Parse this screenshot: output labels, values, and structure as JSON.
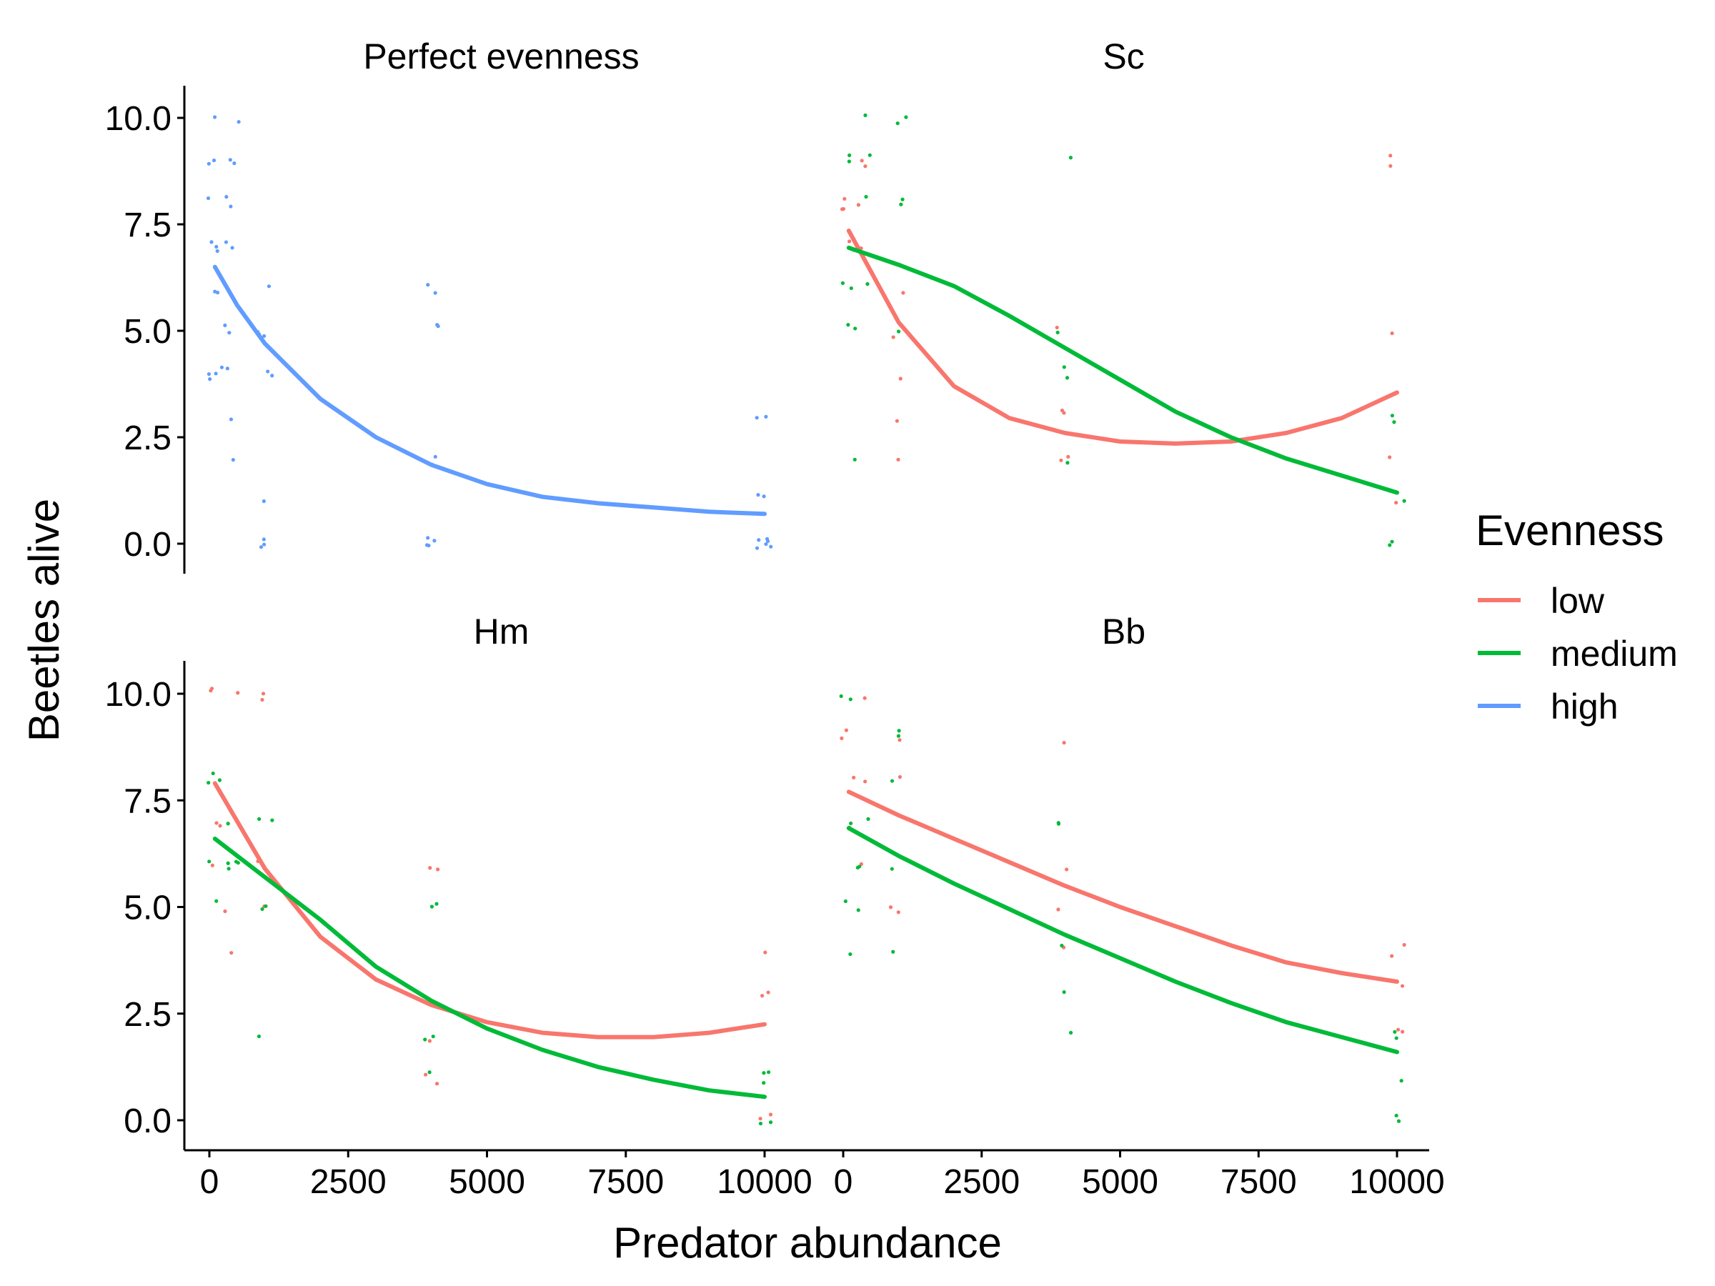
{
  "chart_data": {
    "type": "line+scatter (faceted)",
    "xlabel": "Predator abundance",
    "ylabel": "Beetles alive",
    "xlim": [
      0,
      10000
    ],
    "ylim": [
      0,
      10
    ],
    "x_ticks": [
      0,
      2500,
      5000,
      7500,
      10000
    ],
    "x_tick_labels": [
      "0",
      "2500",
      "5000",
      "7500",
      "10000"
    ],
    "y_ticks": [
      0,
      2.5,
      5,
      7.5,
      10
    ],
    "y_tick_labels": [
      "0.0",
      "2.5",
      "5.0",
      "7.5",
      "10.0"
    ],
    "grid": false,
    "legend": {
      "title": "Evenness",
      "position": "right",
      "entries": [
        {
          "name": "low",
          "color": "#F8766D"
        },
        {
          "name": "medium",
          "color": "#00BA38"
        },
        {
          "name": "high",
          "color": "#619CFF"
        }
      ]
    },
    "panels": [
      {
        "title": "Perfect evenness",
        "series": [
          {
            "name": "high",
            "color": "#619CFF",
            "fit": {
              "x": [
                100,
                500,
                1000,
                2000,
                3000,
                4000,
                5000,
                6000,
                7000,
                8000,
                9000,
                10000
              ],
              "y": [
                6.5,
                5.6,
                4.7,
                3.4,
                2.5,
                1.85,
                1.4,
                1.1,
                0.95,
                0.85,
                0.75,
                0.7
              ]
            },
            "points": {
              "x": [
                100,
                100,
                100,
                100,
                100,
                100,
                100,
                100,
                100,
                100,
                100,
                100,
                100,
                400,
                400,
                400,
                400,
                400,
                400,
                400,
                400,
                400,
                400,
                400,
                400,
                1000,
                1000,
                1000,
                1000,
                1000,
                1000,
                1000,
                1000,
                1000,
                1000,
                4000,
                4000,
                4000,
                4000,
                4000,
                4000,
                4000,
                4000,
                4000,
                4000,
                10000,
                10000,
                10000,
                10000,
                10000,
                10000,
                10000,
                10000,
                10000,
                10000
              ],
              "y": [
                10,
                9,
                9,
                8,
                7,
                7,
                7,
                6,
                6,
                4,
                4,
                4,
                4,
                10,
                9,
                9,
                8,
                8,
                7,
                7,
                5,
                5,
                4,
                3,
                2,
                6,
                5,
                5,
                5,
                4,
                4,
                1,
                0,
                0,
                0,
                6,
                6,
                5,
                5,
                2,
                2,
                0,
                0,
                0,
                0,
                3,
                3,
                1,
                1,
                0,
                0,
                0,
                0,
                0,
                0
              ]
            }
          }
        ]
      },
      {
        "title": "Sc",
        "series": [
          {
            "name": "low",
            "color": "#F8766D",
            "fit": {
              "x": [
                100,
                1000,
                2000,
                3000,
                4000,
                5000,
                6000,
                7000,
                8000,
                9000,
                10000
              ],
              "y": [
                7.35,
                5.2,
                3.7,
                2.95,
                2.6,
                2.4,
                2.35,
                2.4,
                2.6,
                2.95,
                3.55
              ]
            },
            "points": {
              "x": [
                100,
                100,
                100,
                100,
                100,
                400,
                400,
                400,
                400,
                1000,
                1000,
                1000,
                1000,
                1000,
                4000,
                4000,
                4000,
                4000,
                4000,
                10000,
                10000,
                10000,
                10000,
                10000
              ],
              "y": [
                8,
                8,
                8,
                7,
                7,
                9,
                9,
                8,
                7,
                6,
                5,
                4,
                3,
                2,
                5,
                3,
                3,
                2,
                2,
                9,
                9,
                5,
                2,
                1
              ]
            }
          },
          {
            "name": "medium",
            "color": "#00BA38",
            "fit": {
              "x": [
                100,
                1000,
                2000,
                3000,
                4000,
                5000,
                6000,
                7000,
                8000,
                9000,
                10000
              ],
              "y": [
                6.95,
                6.55,
                6.05,
                5.35,
                4.6,
                3.85,
                3.1,
                2.5,
                2.0,
                1.6,
                1.2
              ]
            },
            "points": {
              "x": [
                100,
                100,
                100,
                100,
                100,
                100,
                100,
                400,
                400,
                400,
                400,
                1000,
                1000,
                1000,
                1000,
                1000,
                4000,
                4000,
                4000,
                4000,
                4000,
                10000,
                10000,
                10000,
                10000,
                10000
              ],
              "y": [
                9,
                9,
                6,
                6,
                5,
                5,
                2,
                10,
                9,
                8,
                6,
                10,
                10,
                8,
                8,
                5,
                9,
                5,
                4,
                4,
                2,
                3,
                3,
                1,
                0,
                0
              ]
            }
          }
        ]
      },
      {
        "title": "Hm",
        "series": [
          {
            "name": "low",
            "color": "#F8766D",
            "fit": {
              "x": [
                100,
                1000,
                2000,
                3000,
                4000,
                5000,
                6000,
                7000,
                8000,
                9000,
                10000
              ],
              "y": [
                7.9,
                5.9,
                4.3,
                3.3,
                2.7,
                2.3,
                2.05,
                1.95,
                1.95,
                2.05,
                2.25
              ]
            },
            "points": {
              "x": [
                100,
                100,
                100,
                100,
                100,
                400,
                400,
                400,
                1000,
                1000,
                1000,
                1000,
                4000,
                4000,
                4000,
                4000,
                4000,
                10000,
                10000,
                10000,
                10000,
                10000
              ],
              "y": [
                10,
                10,
                7,
                7,
                6,
                10,
                5,
                4,
                10,
                10,
                6,
                5,
                6,
                6,
                2,
                1,
                1,
                4,
                3,
                3,
                0,
                0
              ]
            }
          },
          {
            "name": "medium",
            "color": "#00BA38",
            "fit": {
              "x": [
                100,
                1000,
                2000,
                3000,
                4000,
                5000,
                6000,
                7000,
                8000,
                9000,
                10000
              ],
              "y": [
                6.6,
                5.7,
                4.7,
                3.6,
                2.8,
                2.15,
                1.65,
                1.25,
                0.95,
                0.7,
                0.55
              ]
            },
            "points": {
              "x": [
                100,
                100,
                100,
                100,
                100,
                400,
                400,
                400,
                400,
                400,
                1000,
                1000,
                1000,
                1000,
                1000,
                4000,
                4000,
                4000,
                4000,
                4000,
                10000,
                10000,
                10000,
                10000,
                10000
              ],
              "y": [
                8,
                8,
                8,
                6,
                5,
                7,
                6,
                6,
                6,
                6,
                7,
                7,
                5,
                5,
                2,
                5,
                5,
                2,
                2,
                1,
                1,
                1,
                1,
                0,
                0
              ]
            }
          }
        ]
      },
      {
        "title": "Bb",
        "series": [
          {
            "name": "low",
            "color": "#F8766D",
            "fit": {
              "x": [
                100,
                1000,
                2000,
                3000,
                4000,
                5000,
                6000,
                7000,
                8000,
                9000,
                10000
              ],
              "y": [
                7.7,
                7.15,
                6.6,
                6.05,
                5.5,
                5.0,
                4.55,
                4.1,
                3.7,
                3.45,
                3.25
              ]
            },
            "points": {
              "x": [
                100,
                100,
                100,
                100,
                400,
                400,
                400,
                1000,
                1000,
                1000,
                1000,
                4000,
                4000,
                4000,
                4000,
                10000,
                10000,
                10000,
                10000,
                10000
              ],
              "y": [
                9,
                9,
                8,
                7,
                10,
                8,
                6,
                9,
                8,
                5,
                5,
                9,
                6,
                5,
                4,
                4,
                4,
                3,
                2,
                2
              ]
            }
          },
          {
            "name": "medium",
            "color": "#00BA38",
            "fit": {
              "x": [
                100,
                1000,
                2000,
                3000,
                4000,
                5000,
                6000,
                7000,
                8000,
                9000,
                10000
              ],
              "y": [
                6.85,
                6.2,
                5.55,
                4.95,
                4.35,
                3.8,
                3.25,
                2.75,
                2.3,
                1.95,
                1.6
              ]
            },
            "points": {
              "x": [
                100,
                100,
                100,
                100,
                100,
                400,
                400,
                400,
                400,
                1000,
                1000,
                1000,
                1000,
                1000,
                4000,
                4000,
                4000,
                4000,
                4000,
                10000,
                10000,
                10000,
                10000,
                10000
              ],
              "y": [
                10,
                10,
                7,
                5,
                4,
                7,
                6,
                6,
                5,
                9,
                9,
                8,
                6,
                4,
                7,
                7,
                4,
                3,
                2,
                2,
                2,
                1,
                0,
                0
              ]
            }
          }
        ]
      }
    ]
  }
}
